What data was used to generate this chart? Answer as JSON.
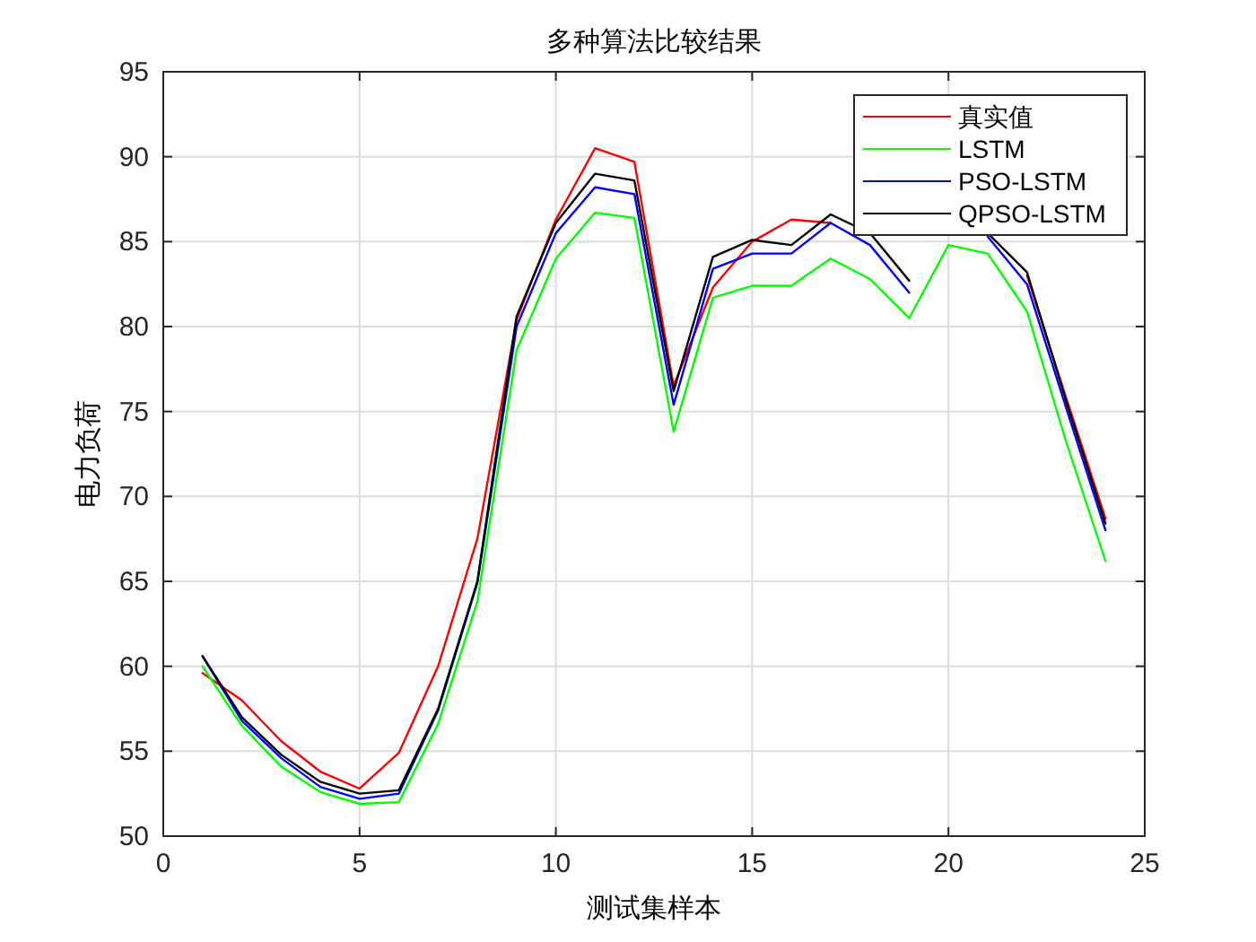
{
  "chart_data": {
    "type": "line",
    "title": "多种算法比较结果",
    "xlabel": "测试集样本",
    "ylabel": "电力负荷",
    "x": [
      1,
      2,
      3,
      4,
      5,
      6,
      7,
      8,
      9,
      10,
      11,
      12,
      13,
      14,
      15,
      16,
      17,
      18,
      19,
      20,
      21,
      22,
      23,
      24
    ],
    "series": [
      {
        "name": "真实值",
        "color": "#ff0000",
        "values": [
          59.6,
          58.0,
          55.6,
          53.8,
          52.8,
          54.9,
          60.0,
          67.5,
          80.4,
          86.3,
          90.5,
          89.7,
          76.5,
          82.3,
          85.0,
          86.3,
          86.1,
          null,
          null,
          null,
          null,
          83.0,
          75.8,
          68.7
        ]
      },
      {
        "name": "LSTM",
        "color": "#00ff00",
        "values": [
          60.0,
          56.5,
          54.1,
          52.6,
          51.9,
          52.0,
          56.6,
          63.8,
          78.6,
          84.0,
          86.7,
          86.4,
          73.8,
          81.7,
          82.4,
          82.4,
          84.0,
          82.8,
          80.5,
          84.8,
          84.3,
          80.9,
          73.2,
          66.2
        ]
      },
      {
        "name": "PSO-LSTM",
        "color": "#0000ff",
        "values": [
          60.6,
          56.8,
          54.6,
          52.9,
          52.2,
          52.5,
          57.4,
          64.9,
          80.0,
          85.5,
          88.2,
          87.8,
          75.4,
          83.4,
          84.3,
          84.3,
          86.1,
          84.8,
          82.0,
          null,
          85.3,
          82.5,
          75.2,
          68.0
        ]
      },
      {
        "name": "QPSO-LSTM",
        "color": "#000000",
        "values": [
          60.6,
          57.0,
          54.8,
          53.2,
          52.5,
          52.7,
          57.5,
          65.0,
          80.6,
          86.1,
          89.0,
          88.6,
          76.2,
          84.1,
          85.1,
          84.8,
          86.6,
          85.5,
          82.7,
          null,
          85.5,
          83.2,
          75.6,
          68.4
        ]
      }
    ],
    "xlim": [
      0,
      25
    ],
    "ylim": [
      50,
      95
    ],
    "xticks": [
      0,
      5,
      10,
      15,
      20,
      25
    ],
    "yticks": [
      50,
      55,
      60,
      65,
      70,
      75,
      80,
      85,
      90,
      95
    ],
    "grid": true,
    "legend": "top right",
    "marker": "none",
    "line_style": "solid"
  }
}
